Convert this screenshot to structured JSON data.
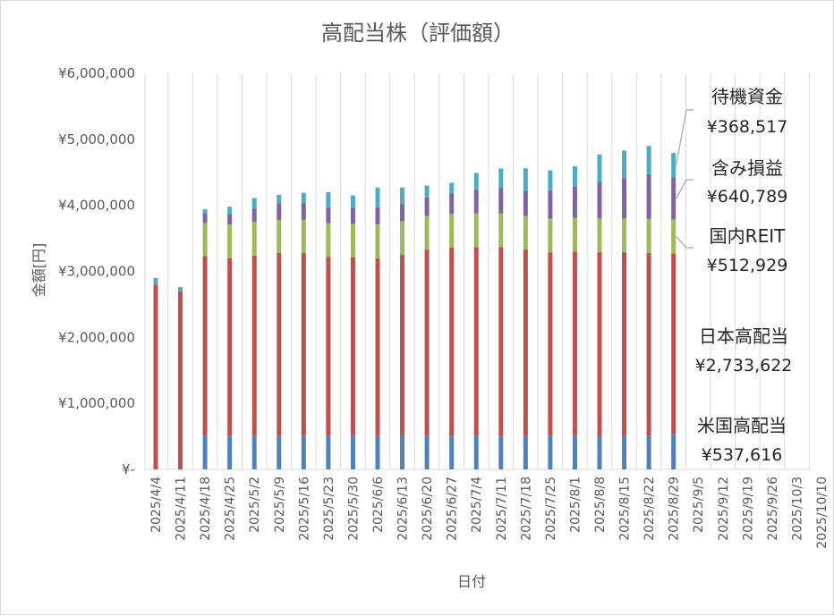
{
  "chart_data": {
    "type": "bar",
    "stacked": true,
    "title": "高配当株（評価額）",
    "xlabel": "日付",
    "ylabel": "金額[円]",
    "ylim": [
      0,
      6000000
    ],
    "y_ticks": [
      0,
      1000000,
      2000000,
      3000000,
      4000000,
      5000000,
      6000000
    ],
    "y_tick_labels": [
      "¥-",
      "¥1,000,000",
      "¥2,000,000",
      "¥3,000,000",
      "¥4,000,000",
      "¥5,000,000",
      "¥6,000,000"
    ],
    "grid": "vertical",
    "categories": [
      "2025/4/4",
      "2025/4/11",
      "2025/4/18",
      "2025/4/25",
      "2025/5/2",
      "2025/5/9",
      "2025/5/16",
      "2025/5/23",
      "2025/5/30",
      "2025/6/6",
      "2025/6/13",
      "2025/6/20",
      "2025/6/27",
      "2025/7/4",
      "2025/7/11",
      "2025/7/18",
      "2025/7/25",
      "2025/8/1",
      "2025/8/8",
      "2025/8/15",
      "2025/8/22",
      "2025/8/29",
      "2025/9/5",
      "2025/9/12",
      "2025/9/19",
      "2025/9/26",
      "2025/10/3",
      "2025/10/10"
    ],
    "series": [
      {
        "color": "#4f81bd",
        "values": [
          0,
          0,
          510000,
          510000,
          510000,
          510000,
          510000,
          510000,
          510000,
          510000,
          510000,
          510000,
          510000,
          510000,
          510000,
          510000,
          510000,
          510000,
          510000,
          510000,
          510000,
          537616,
          null,
          null,
          null,
          null,
          null,
          null
        ]
      },
      {
        "color": "#c0504d",
        "values": [
          2800000,
          2700000,
          2720000,
          2690000,
          2730000,
          2770000,
          2770000,
          2710000,
          2700000,
          2690000,
          2740000,
          2820000,
          2850000,
          2860000,
          2860000,
          2820000,
          2780000,
          2790000,
          2780000,
          2780000,
          2770000,
          2733622,
          null,
          null,
          null,
          null,
          null,
          null
        ]
      },
      {
        "color": "#9bbb59",
        "values": [
          0,
          0,
          500000,
          510000,
          510000,
          500000,
          500000,
          510000,
          510000,
          510000,
          510000,
          510000,
          510000,
          510000,
          510000,
          510000,
          510000,
          510000,
          510000,
          510000,
          510000,
          512929,
          null,
          null,
          null,
          null,
          null,
          null
        ]
      },
      {
        "color": "#8064a2",
        "values": [
          0,
          0,
          150000,
          160000,
          200000,
          250000,
          250000,
          240000,
          240000,
          260000,
          260000,
          280000,
          310000,
          360000,
          380000,
          380000,
          430000,
          480000,
          560000,
          610000,
          680000,
          640789,
          null,
          null,
          null,
          null,
          null,
          null
        ]
      },
      {
        "color": "#4bacc6",
        "values": [
          100000,
          60000,
          60000,
          110000,
          160000,
          130000,
          160000,
          230000,
          190000,
          300000,
          250000,
          180000,
          160000,
          250000,
          300000,
          340000,
          300000,
          300000,
          410000,
          420000,
          430000,
          368517,
          null,
          null,
          null,
          null,
          null,
          null
        ]
      }
    ],
    "annotations": [
      {
        "name": "待機資金",
        "value": "¥368,517"
      },
      {
        "name": "含み損益",
        "value": "¥640,789"
      },
      {
        "name": "国内REIT",
        "value": "¥512,929"
      },
      {
        "name": "日本高配当",
        "value": "¥2,733,622"
      },
      {
        "name": "米国高配当",
        "value": "¥537,616"
      }
    ]
  }
}
